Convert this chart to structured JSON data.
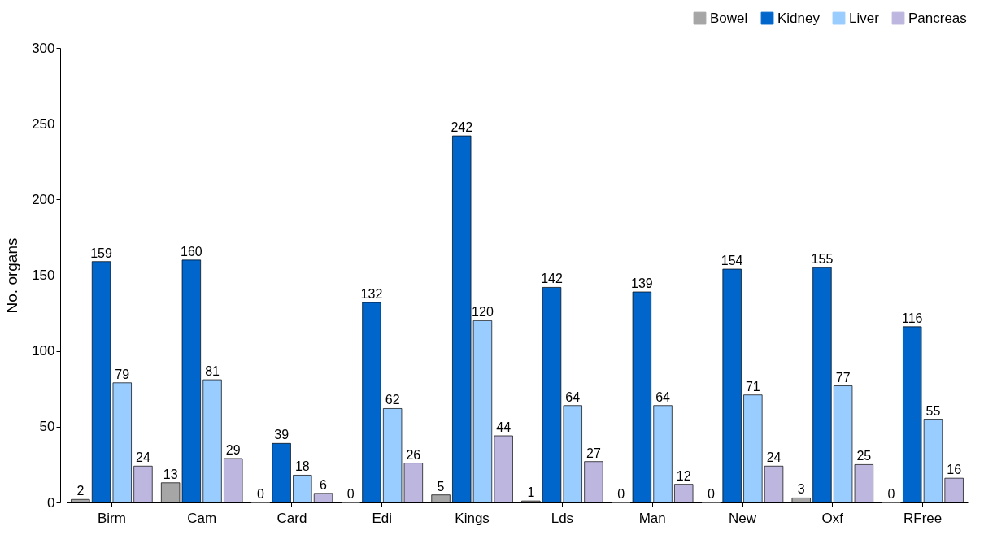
{
  "chart_data": {
    "type": "bar",
    "ylabel": "No. organs",
    "categories": [
      "Birm",
      "Cam",
      "Card",
      "Edi",
      "Kings",
      "Lds",
      "Man",
      "New",
      "Oxf",
      "RFree"
    ],
    "series": [
      {
        "name": "Bowel",
        "color": "#a6a6a6",
        "values": [
          2,
          13,
          0,
          0,
          5,
          1,
          0,
          0,
          3,
          0
        ]
      },
      {
        "name": "Kidney",
        "color": "#0066cc",
        "values": [
          159,
          160,
          39,
          132,
          242,
          142,
          139,
          154,
          155,
          116
        ]
      },
      {
        "name": "Liver",
        "color": "#99ccff",
        "values": [
          79,
          81,
          18,
          62,
          120,
          64,
          64,
          71,
          77,
          55
        ]
      },
      {
        "name": "Pancreas",
        "color": "#bdb7e0",
        "values": [
          24,
          29,
          6,
          26,
          44,
          27,
          12,
          24,
          25,
          16
        ]
      }
    ],
    "ylim": [
      0,
      300
    ],
    "yticks": [
      0,
      50,
      100,
      150,
      200,
      250,
      300
    ],
    "grid": false,
    "legend": "top right",
    "data_labels": true
  }
}
